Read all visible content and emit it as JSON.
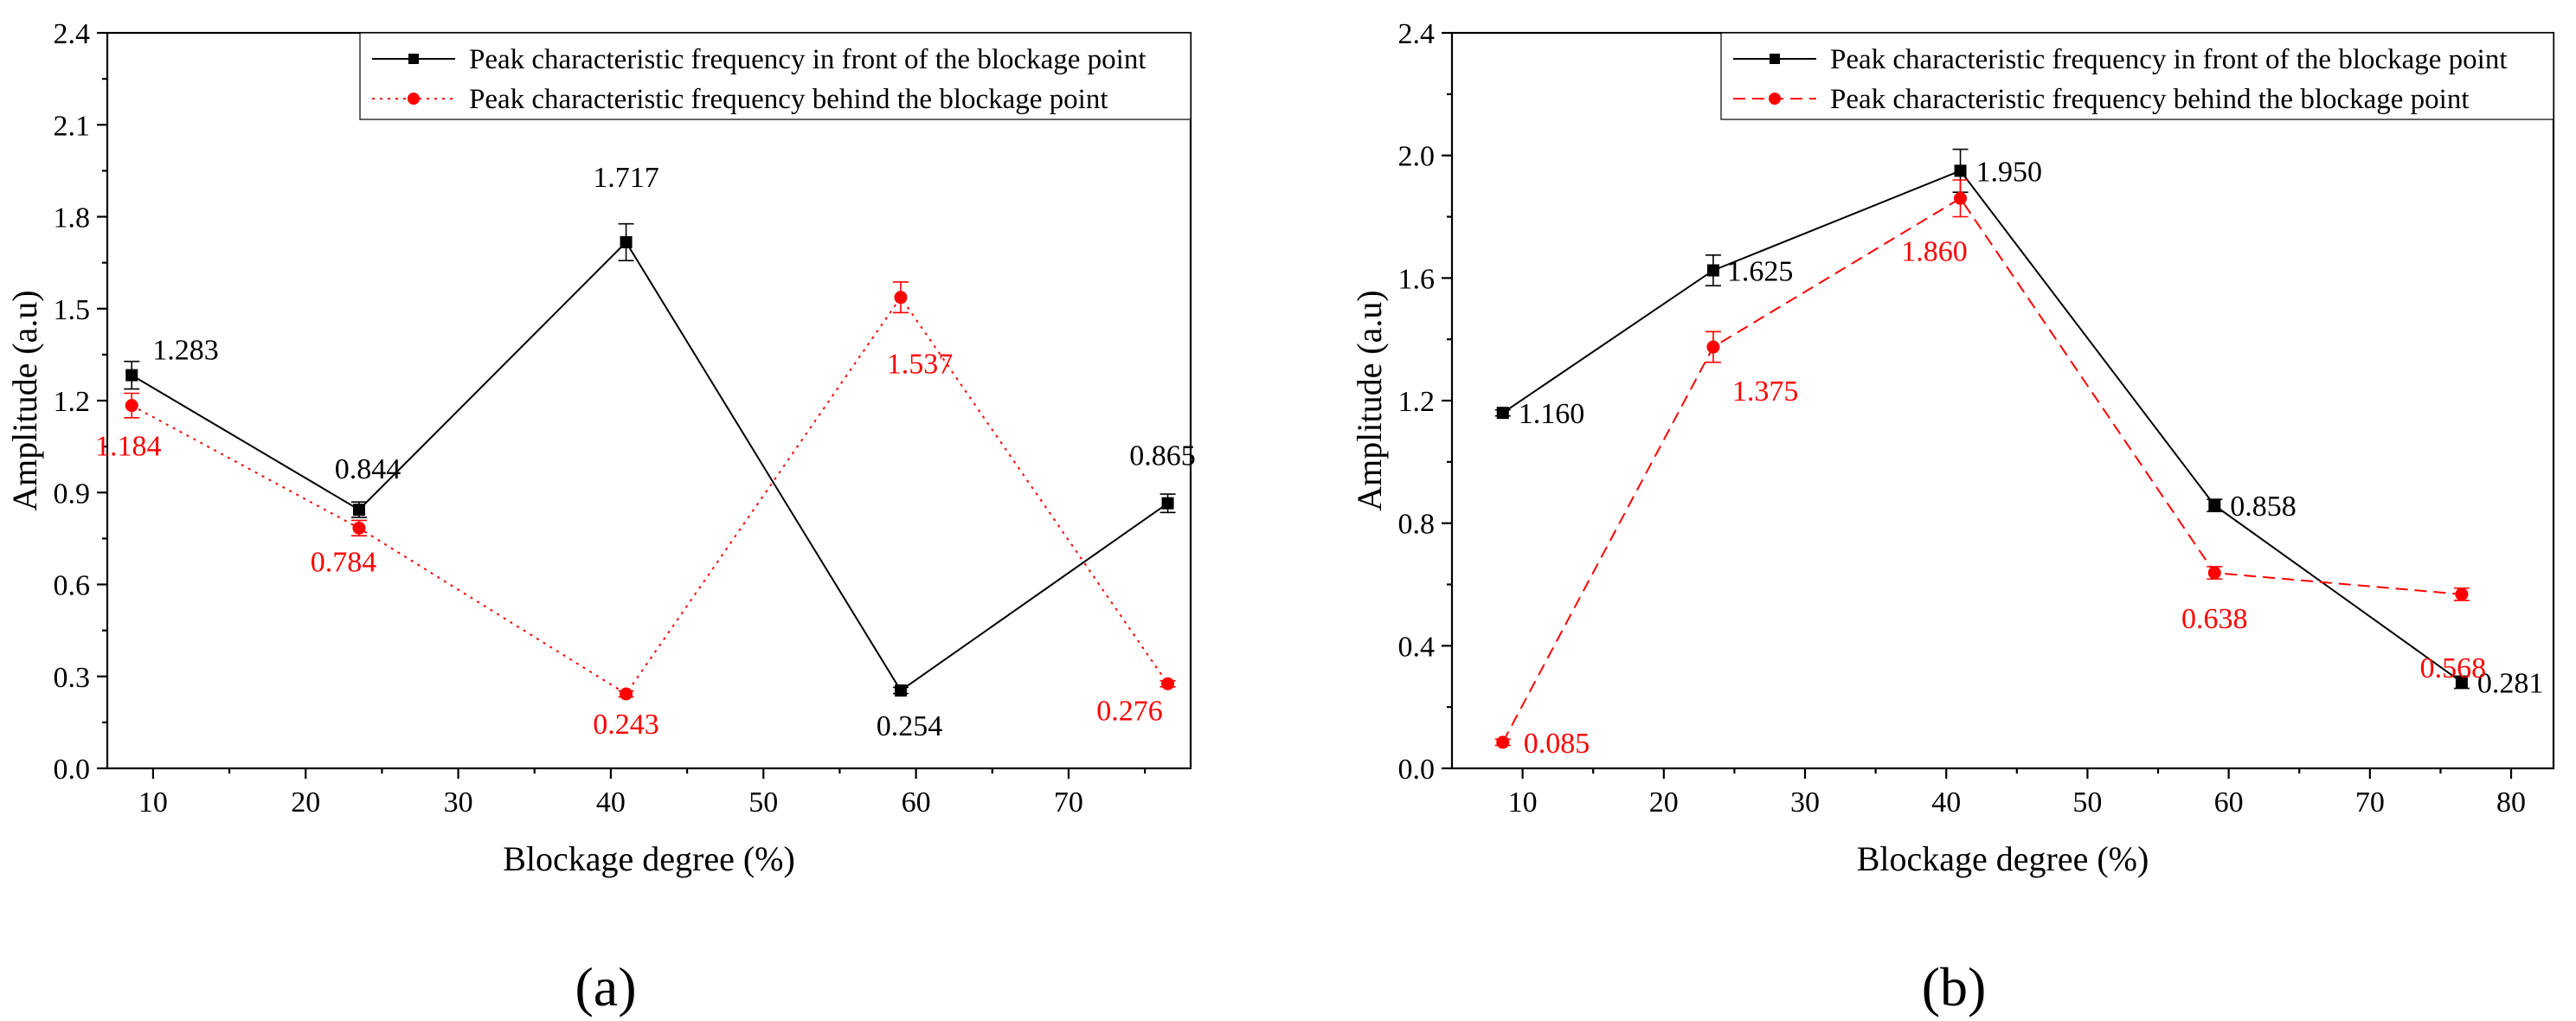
{
  "chart_data": [
    {
      "panel": "(a)",
      "type": "line",
      "xlabel": "Blockage degree (%)",
      "ylabel": "Amplitude (a.u)",
      "xlim": [
        7,
        78
      ],
      "ylim": [
        0,
        2.4
      ],
      "xticks": [
        "10",
        "20",
        "30",
        "40",
        "50",
        "60",
        "70"
      ],
      "yticks": [
        "0.0",
        "0.3",
        "0.6",
        "0.9",
        "1.2",
        "1.5",
        "1.8",
        "2.1",
        "2.4"
      ],
      "x": [
        8.6,
        23.5,
        41,
        59,
        76.5
      ],
      "legend_position": "top-right",
      "series": [
        {
          "name": "Peak characteristic frequency in front of the blockage point",
          "color": "#000000",
          "line": "solid",
          "marker": "square",
          "values": [
            1.283,
            0.844,
            1.717,
            0.254,
            0.865
          ],
          "errors": [
            0.045,
            0.025,
            0.06,
            0.01,
            0.03
          ],
          "labels": [
            "1.283",
            "0.844",
            "1.717",
            "0.254",
            "0.865"
          ]
        },
        {
          "name": "Peak characteristic frequency behind the blockage point",
          "color": "#ff0000",
          "line": "dotted",
          "marker": "circle",
          "values": [
            1.184,
            0.784,
            0.243,
            1.537,
            0.276
          ],
          "errors": [
            0.04,
            0.025,
            0.01,
            0.05,
            0.01
          ],
          "labels": [
            "1.184",
            "0.784",
            "0.243",
            "1.537",
            "0.276"
          ]
        }
      ]
    },
    {
      "panel": "(b)",
      "type": "line",
      "xlabel": "Blockage degree (%)",
      "ylabel": "Amplitude (a.u)",
      "xlim": [
        5,
        83
      ],
      "ylim": [
        0,
        2.4
      ],
      "xticks": [
        "10",
        "20",
        "30",
        "40",
        "50",
        "60",
        "70",
        "80"
      ],
      "yticks": [
        "0.0",
        "0.4",
        "0.8",
        "1.2",
        "1.6",
        "2.0",
        "2.4"
      ],
      "x": [
        8.6,
        23.5,
        41,
        59,
        76.5
      ],
      "legend_position": "top-right",
      "series": [
        {
          "name": "Peak characteristic frequency in front of the blockage point",
          "color": "#000000",
          "line": "solid",
          "marker": "square",
          "values": [
            1.16,
            1.625,
            1.95,
            0.858,
            0.281
          ],
          "errors": [
            0.01,
            0.05,
            0.07,
            0.02,
            0.02
          ],
          "labels": [
            "1.160",
            "1.625",
            "1.950",
            "0.858",
            "0.281"
          ]
        },
        {
          "name": "Peak characteristic frequency behind the blockage point",
          "color": "#ff0000",
          "line": "dashed",
          "marker": "circle",
          "values": [
            0.085,
            1.375,
            1.86,
            0.638,
            0.568
          ],
          "errors": [
            0.01,
            0.05,
            0.06,
            0.02,
            0.02
          ],
          "labels": [
            "0.085",
            "1.375",
            "1.860",
            "0.638",
            "0.568"
          ]
        }
      ]
    }
  ]
}
